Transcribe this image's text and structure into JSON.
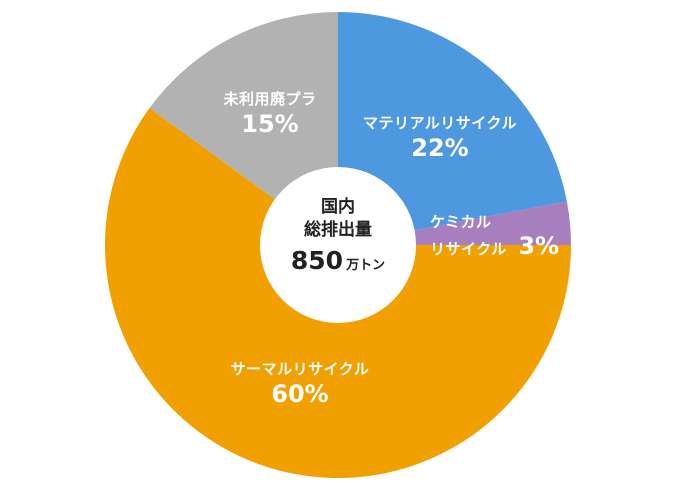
{
  "chart_data": {
    "type": "pie",
    "style": "donut-with-center-label",
    "title": "国内総排出量 850 万トン",
    "center_label": {
      "line1": "国内",
      "line2": "総排出量",
      "value": "850",
      "unit": "万トン"
    },
    "total": 850,
    "total_unit": "万トン",
    "categories": [
      "マテリアルリサイクル",
      "ケミカルリサイクル",
      "サーマルリサイクル",
      "未利用廃プラ"
    ],
    "values": [
      22,
      3,
      60,
      15
    ],
    "value_unit": "%",
    "colors": [
      "#4d98df",
      "#a77fbf",
      "#f0a000",
      "#b2b2b2"
    ],
    "start_angle_deg": 0,
    "direction": "clockwise",
    "legend": "none (labels inside slices)"
  },
  "labels": {
    "material": {
      "name": "マテリアルリサイクル",
      "pct": "22%"
    },
    "chemical": {
      "name_line1": "ケミカル",
      "name_line2": "リサイクル",
      "pct": "3%"
    },
    "thermal": {
      "name": "サーマルリサイクル",
      "pct": "60%"
    },
    "unused": {
      "name": "未利用廃プラ",
      "pct": "15%"
    }
  }
}
